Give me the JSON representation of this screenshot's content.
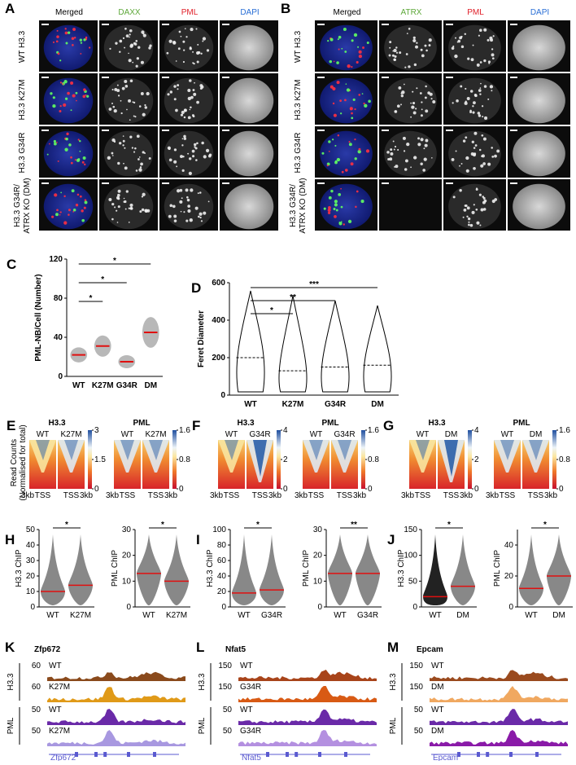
{
  "A": {
    "label": "A",
    "columns": [
      {
        "text": "Merged",
        "color": "#000000"
      },
      {
        "text": "DAXX",
        "color": "#5ea83a"
      },
      {
        "text": "PML",
        "color": "#e0202a"
      },
      {
        "text": "DAPI",
        "color": "#2a6fd6"
      }
    ],
    "rows": [
      [
        "WT H3.3"
      ],
      [
        "H3.3 K27M"
      ],
      [
        "H3.3 G34R"
      ],
      [
        "H3.3 G34R/",
        "ATRX KO (DM)"
      ]
    ]
  },
  "B": {
    "label": "B",
    "columns": [
      {
        "text": "Merged",
        "color": "#000000"
      },
      {
        "text": "ATRX",
        "color": "#5ea83a"
      },
      {
        "text": "PML",
        "color": "#e0202a"
      },
      {
        "text": "DAPI",
        "color": "#2a6fd6"
      }
    ],
    "rows": [
      [
        "WT H3.3"
      ],
      [
        "H3.3 K27M"
      ],
      [
        "H3.3 G34R"
      ],
      [
        "H3.3 G34R/",
        "ATRX KO (DM)"
      ]
    ]
  },
  "C": {
    "label": "C",
    "y_label": "PML-NB/Cell (Number)",
    "categories": [
      "WT",
      "K27M",
      "G34R",
      "DM"
    ],
    "medians": [
      22,
      31,
      15,
      45
    ],
    "ylim": [
      0,
      120
    ],
    "yticks": [
      0,
      40,
      80,
      120
    ],
    "significance": [
      "*",
      "*",
      "*"
    ]
  },
  "D": {
    "label": "D",
    "y_label": "Feret Diameter",
    "categories": [
      "WT",
      "K27M",
      "G34R",
      "DM"
    ],
    "medians": [
      200,
      130,
      150,
      160
    ],
    "ylim": [
      0,
      600
    ],
    "yticks": [
      0,
      200,
      400,
      600
    ],
    "significance": [
      "*",
      "**",
      "***"
    ]
  },
  "heatmap_y_label": [
    "Read Counts",
    "(Normalised for total)"
  ],
  "heatmaps": [
    {
      "label": "E",
      "x_labels": [
        "3kb",
        "TSS",
        "3kb"
      ],
      "groups": [
        {
          "title": "H3.3",
          "samples": [
            "WT",
            "K27M"
          ],
          "lim": [
            0,
            3
          ],
          "ticks": [
            0,
            1.5,
            3
          ]
        },
        {
          "title": "PML",
          "samples": [
            "WT",
            "K27M"
          ],
          "lim": [
            0,
            1.6
          ],
          "ticks": [
            0,
            0.8,
            1.6
          ]
        }
      ]
    },
    {
      "label": "F",
      "x_labels": [
        "3kb",
        "TSS",
        "3kb"
      ],
      "groups": [
        {
          "title": "H3.3",
          "samples": [
            "WT",
            "G34R"
          ],
          "lim": [
            0,
            4
          ],
          "ticks": [
            0,
            2,
            4
          ]
        },
        {
          "title": "PML",
          "samples": [
            "WT",
            "G34R"
          ],
          "lim": [
            0,
            1.6
          ],
          "ticks": [
            0,
            0.8,
            1.6
          ]
        }
      ]
    },
    {
      "label": "G",
      "x_labels": [
        "3kb",
        "TSS",
        "3kb"
      ],
      "groups": [
        {
          "title": "H3.3",
          "samples": [
            "WT",
            "DM"
          ],
          "lim": [
            0,
            4
          ],
          "ticks": [
            0,
            2,
            4
          ]
        },
        {
          "title": "PML",
          "samples": [
            "WT",
            "DM"
          ],
          "lim": [
            0,
            1.6
          ],
          "ticks": [
            0,
            0.8,
            1.6
          ]
        }
      ]
    }
  ],
  "chip": [
    {
      "label": "H",
      "plots": [
        {
          "y_label": "H3.3 ChIP",
          "categories": [
            "WT",
            "K27M"
          ],
          "medians": [
            10,
            14
          ],
          "ylim": [
            0,
            50
          ],
          "yticks": [
            0,
            10,
            20,
            30,
            40,
            50
          ],
          "significance": "*"
        },
        {
          "y_label": "PML ChIP",
          "categories": [
            "WT",
            "K27M"
          ],
          "medians": [
            13,
            10
          ],
          "ylim": [
            0,
            30
          ],
          "yticks": [
            0,
            10,
            20,
            30
          ],
          "significance": "*"
        }
      ]
    },
    {
      "label": "I",
      "plots": [
        {
          "y_label": "H3.3 ChIP",
          "categories": [
            "WT",
            "G34R"
          ],
          "medians": [
            18,
            22
          ],
          "ylim": [
            0,
            100
          ],
          "yticks": [
            0,
            20,
            40,
            60,
            80,
            100
          ],
          "significance": "*"
        },
        {
          "y_label": "PML ChIP",
          "categories": [
            "WT",
            "G34R"
          ],
          "medians": [
            13,
            13
          ],
          "ylim": [
            0,
            30
          ],
          "yticks": [
            0,
            10,
            20,
            30
          ],
          "significance": "**"
        }
      ]
    },
    {
      "label": "J",
      "plots": [
        {
          "y_label": "H3.3 ChIP",
          "categories": [
            "WT",
            "DM"
          ],
          "medians": [
            20,
            40
          ],
          "ylim": [
            0,
            150
          ],
          "yticks": [
            0,
            50,
            100,
            150
          ],
          "significance": "*"
        },
        {
          "y_label": "PML ChIP",
          "categories": [
            "WT",
            "DM"
          ],
          "medians": [
            12,
            20
          ],
          "ylim": [
            0,
            50
          ],
          "yticks": [
            0,
            20,
            40
          ],
          "significance": "*"
        }
      ]
    }
  ],
  "tracks": [
    {
      "label": "K",
      "gene": "Zfp672",
      "groups": [
        {
          "name": "H3.3",
          "tracks": [
            {
              "scale": 60,
              "sample": "WT",
              "color": "#8a4a1c"
            },
            {
              "scale": 60,
              "sample": "K27M",
              "color": "#e09a18"
            }
          ]
        },
        {
          "name": "PML",
          "tracks": [
            {
              "scale": 50,
              "sample": "WT",
              "color": "#6a2aa8"
            },
            {
              "scale": 50,
              "sample": "K27M",
              "color": "#a898e0"
            }
          ]
        }
      ]
    },
    {
      "label": "L",
      "gene": "Nfat5",
      "groups": [
        {
          "name": "H3.3",
          "tracks": [
            {
              "scale": 150,
              "sample": "WT",
              "color": "#a8441a"
            },
            {
              "scale": 150,
              "sample": "G34R",
              "color": "#d85a14"
            }
          ]
        },
        {
          "name": "PML",
          "tracks": [
            {
              "scale": 50,
              "sample": "WT",
              "color": "#6a2aa8"
            },
            {
              "scale": 50,
              "sample": "G34R",
              "color": "#b490e0"
            }
          ]
        }
      ]
    },
    {
      "label": "M",
      "gene": "Epcam",
      "groups": [
        {
          "name": "H3.3",
          "tracks": [
            {
              "scale": 150,
              "sample": "WT",
              "color": "#9a4a1e"
            },
            {
              "scale": 150,
              "sample": "DM",
              "color": "#f0a860"
            }
          ]
        },
        {
          "name": "PML",
          "tracks": [
            {
              "scale": 50,
              "sample": "WT",
              "color": "#6a2aa8"
            },
            {
              "scale": 50,
              "sample": "DM",
              "color": "#8a1aa8"
            }
          ]
        }
      ]
    }
  ]
}
